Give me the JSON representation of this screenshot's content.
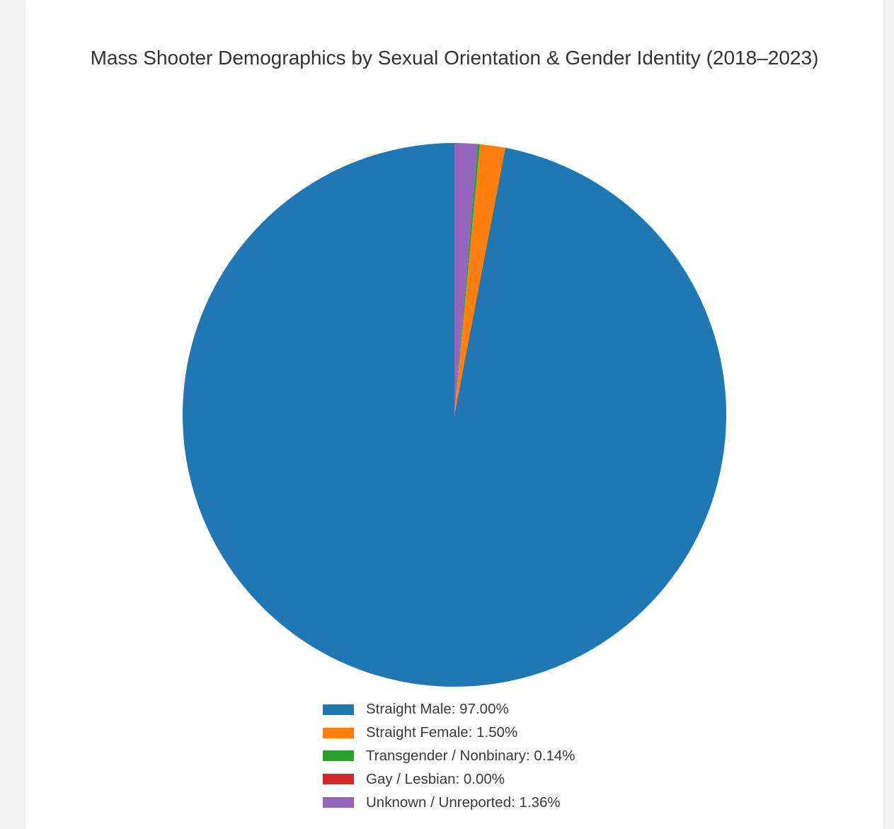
{
  "chart_data": {
    "type": "pie",
    "title": "Mass Shooter Demographics by Sexual Orientation & Gender Identity (2018–2023)",
    "slices": [
      {
        "label": "Straight Male",
        "value": 97.0,
        "color": "#1f77b4"
      },
      {
        "label": "Straight Female",
        "value": 1.5,
        "color": "#ff7f0e"
      },
      {
        "label": "Transgender / Nonbinary",
        "value": 0.14,
        "color": "#2ca02c"
      },
      {
        "label": "Gay / Lesbian",
        "value": 0.0,
        "color": "#d62728"
      },
      {
        "label": "Unknown / Unreported",
        "value": 1.36,
        "color": "#9467bd"
      }
    ],
    "legend_labels": [
      "Straight Male: 97.00%",
      "Straight Female: 1.50%",
      "Transgender / Nonbinary: 0.14%",
      "Gay / Lesbian: 0.00%",
      "Unknown / Unreported: 1.36%"
    ],
    "start_angle": "12 o'clock",
    "direction": "clockwise",
    "legend_position": "bottom"
  }
}
